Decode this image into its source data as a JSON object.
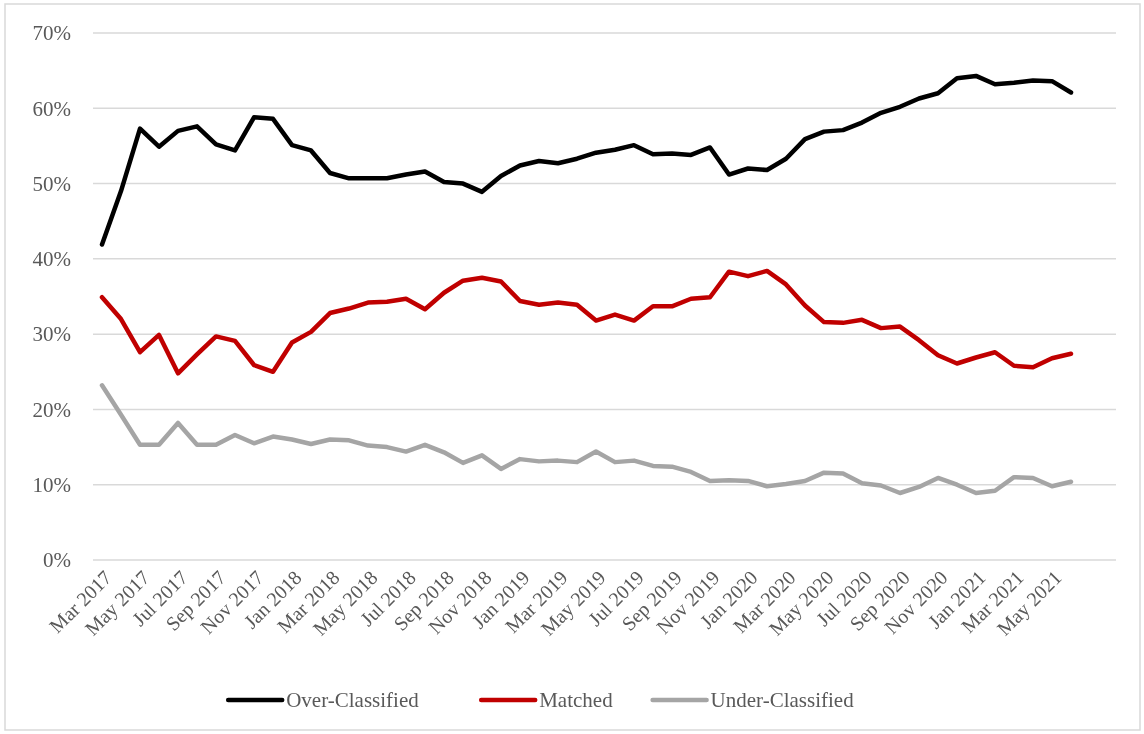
{
  "chart_data": {
    "type": "line",
    "categories": [
      "Mar 2017",
      null,
      "May 2017",
      null,
      "Jul 2017",
      null,
      "Sep 2017",
      null,
      "Nov 2017",
      null,
      "Jan 2018",
      null,
      "Mar 2018",
      null,
      "May 2018",
      null,
      "Jul 2018",
      null,
      "Sep 2018",
      null,
      "Nov 2018",
      null,
      "Jan 2019",
      null,
      "Mar 2019",
      null,
      "May 2019",
      null,
      "Jul 2019",
      null,
      "Sep 2019",
      null,
      "Nov 2019",
      null,
      "Jan 2020",
      null,
      "Mar 2020",
      null,
      "May 2020",
      null,
      "Jul 2020",
      null,
      "Sep 2020",
      null,
      "Nov 2020",
      null,
      "Jan 2021",
      null,
      "Mar 2021",
      null,
      "May 2021",
      null
    ],
    "series": [
      {
        "name": "Over-Classified",
        "color": "#000000",
        "values": [
          41.9,
          49.0,
          57.3,
          54.9,
          57.0,
          57.6,
          55.2,
          54.4,
          58.8,
          58.6,
          55.1,
          54.4,
          51.4,
          50.7,
          50.7,
          50.7,
          51.2,
          51.6,
          50.2,
          50.0,
          48.9,
          51.0,
          52.4,
          53.0,
          52.7,
          53.3,
          54.1,
          54.5,
          55.1,
          53.9,
          54.0,
          53.8,
          54.8,
          51.2,
          52.0,
          51.8,
          53.3,
          55.9,
          56.9,
          57.1,
          58.1,
          59.4,
          60.2,
          61.3,
          62.0,
          64.0,
          64.3,
          63.2,
          63.4,
          63.7,
          63.6,
          62.1
        ]
      },
      {
        "name": "Matched",
        "color": "#c00000",
        "values": [
          34.9,
          32.0,
          27.6,
          29.9,
          24.8,
          27.3,
          29.7,
          29.1,
          25.9,
          25.0,
          28.9,
          30.3,
          32.8,
          33.4,
          34.2,
          34.3,
          34.7,
          33.3,
          35.5,
          37.1,
          37.5,
          37.0,
          34.4,
          33.9,
          34.2,
          33.9,
          31.8,
          32.6,
          31.8,
          33.7,
          33.7,
          34.7,
          34.9,
          38.3,
          37.7,
          38.4,
          36.6,
          33.8,
          31.6,
          31.5,
          31.9,
          30.8,
          31.0,
          29.2,
          27.2,
          26.1,
          26.9,
          27.6,
          25.8,
          25.6,
          26.8,
          27.4
        ]
      },
      {
        "name": "Under-Classified",
        "color": "#a5a5a5",
        "values": [
          23.2,
          19.3,
          15.3,
          15.3,
          18.2,
          15.3,
          15.3,
          16.6,
          15.5,
          16.4,
          16.0,
          15.4,
          16.0,
          15.9,
          15.2,
          15.0,
          14.4,
          15.3,
          14.3,
          12.9,
          13.9,
          12.1,
          13.4,
          13.1,
          13.2,
          13.0,
          14.4,
          13.0,
          13.2,
          12.5,
          12.4,
          11.7,
          10.5,
          10.6,
          10.5,
          9.8,
          10.1,
          10.5,
          11.6,
          11.5,
          10.2,
          9.9,
          8.9,
          9.7,
          10.9,
          10.0,
          8.9,
          9.2,
          11.0,
          10.9,
          9.8,
          10.4
        ]
      }
    ],
    "ylim": [
      0,
      70
    ],
    "yticks": [
      {
        "value": 0,
        "label": "0%"
      },
      {
        "value": 10,
        "label": "10%"
      },
      {
        "value": 20,
        "label": "20%"
      },
      {
        "value": 30,
        "label": "30%"
      },
      {
        "value": 40,
        "label": "40%"
      },
      {
        "value": 50,
        "label": "50%"
      },
      {
        "value": 60,
        "label": "60%"
      },
      {
        "value": 70,
        "label": "70%"
      }
    ],
    "grid": "y",
    "legend": "bottom",
    "line_style": "solid",
    "marker": "none"
  }
}
